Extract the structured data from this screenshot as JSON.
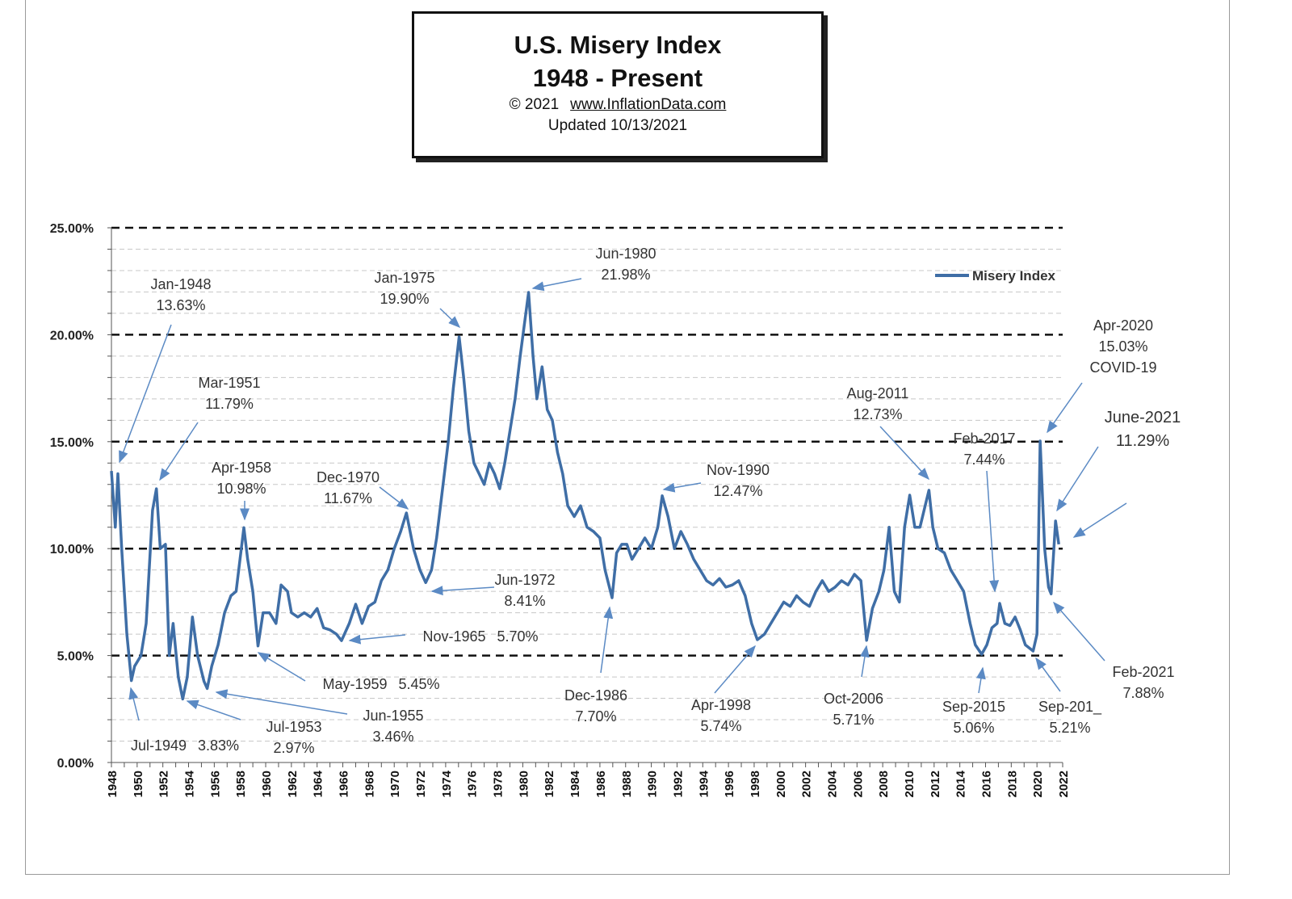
{
  "chart_data": {
    "type": "line",
    "title": "U.S. Misery Index",
    "subtitle": "1948 - Present",
    "copyright": "© 2021",
    "source_link": "www.InflationData.com",
    "updated": "Updated  10/13/2021",
    "xlabel": "",
    "ylabel": "",
    "xlim": [
      1948,
      2022
    ],
    "ylim": [
      0,
      25
    ],
    "y_ticks": [
      "0.00%",
      "5.00%",
      "10.00%",
      "15.00%",
      "20.00%",
      "25.00%"
    ],
    "x_ticks": [
      "1948",
      "1950",
      "1952",
      "1954",
      "1956",
      "1958",
      "1960",
      "1962",
      "1964",
      "1966",
      "1968",
      "1970",
      "1972",
      "1974",
      "1976",
      "1978",
      "1980",
      "1982",
      "1984",
      "1986",
      "1988",
      "1990",
      "1992",
      "1994",
      "1996",
      "1998",
      "2000",
      "2002",
      "2004",
      "2006",
      "2008",
      "2010",
      "2012",
      "2014",
      "2016",
      "2018",
      "2020",
      "2022"
    ],
    "grid": "major dashed every 5%, minor dotted every 1%",
    "legend_position": "top-right",
    "series": [
      {
        "name": "Misery Index",
        "color": "#3f6ea6",
        "points": [
          [
            1948.0,
            13.63
          ],
          [
            1948.3,
            11
          ],
          [
            1948.5,
            13.5
          ],
          [
            1948.8,
            10
          ],
          [
            1949.2,
            6
          ],
          [
            1949.55,
            3.83
          ],
          [
            1949.8,
            4.5
          ],
          [
            1950.3,
            5
          ],
          [
            1950.7,
            6.5
          ],
          [
            1951.2,
            11.79
          ],
          [
            1951.5,
            12.8
          ],
          [
            1951.8,
            10
          ],
          [
            1952.2,
            10.2
          ],
          [
            1952.5,
            5
          ],
          [
            1952.8,
            6.5
          ],
          [
            1953.2,
            4
          ],
          [
            1953.55,
            2.97
          ],
          [
            1953.9,
            4
          ],
          [
            1954.3,
            6.8
          ],
          [
            1954.7,
            5
          ],
          [
            1955.2,
            3.8
          ],
          [
            1955.45,
            3.46
          ],
          [
            1955.8,
            4.5
          ],
          [
            1956.3,
            5.5
          ],
          [
            1956.8,
            7
          ],
          [
            1957.3,
            7.8
          ],
          [
            1957.7,
            8
          ],
          [
            1958.3,
            10.98
          ],
          [
            1958.6,
            9.5
          ],
          [
            1959.0,
            8
          ],
          [
            1959.4,
            5.45
          ],
          [
            1959.8,
            7
          ],
          [
            1960.3,
            7
          ],
          [
            1960.8,
            6.5
          ],
          [
            1961.2,
            8.3
          ],
          [
            1961.7,
            8
          ],
          [
            1962.0,
            7
          ],
          [
            1962.5,
            6.8
          ],
          [
            1963.0,
            7
          ],
          [
            1963.5,
            6.8
          ],
          [
            1964.0,
            7.2
          ],
          [
            1964.5,
            6.3
          ],
          [
            1965.0,
            6.2
          ],
          [
            1965.5,
            6.0
          ],
          [
            1965.9,
            5.7
          ],
          [
            1966.5,
            6.5
          ],
          [
            1967.0,
            7.4
          ],
          [
            1967.5,
            6.5
          ],
          [
            1968.0,
            7.3
          ],
          [
            1968.5,
            7.5
          ],
          [
            1969.0,
            8.5
          ],
          [
            1969.5,
            9
          ],
          [
            1970.0,
            10
          ],
          [
            1970.5,
            10.8
          ],
          [
            1970.95,
            11.67
          ],
          [
            1971.5,
            10
          ],
          [
            1972.0,
            9
          ],
          [
            1972.45,
            8.41
          ],
          [
            1972.9,
            9
          ],
          [
            1973.3,
            10.5
          ],
          [
            1973.7,
            12.5
          ],
          [
            1974.2,
            15
          ],
          [
            1974.6,
            17.5
          ],
          [
            1975.05,
            19.9
          ],
          [
            1975.4,
            18
          ],
          [
            1975.8,
            15.5
          ],
          [
            1976.2,
            14
          ],
          [
            1976.6,
            13.5
          ],
          [
            1977.0,
            13
          ],
          [
            1977.4,
            14
          ],
          [
            1977.8,
            13.5
          ],
          [
            1978.2,
            12.8
          ],
          [
            1978.6,
            14
          ],
          [
            1979.0,
            15.5
          ],
          [
            1979.4,
            17
          ],
          [
            1979.8,
            19
          ],
          [
            1980.45,
            21.98
          ],
          [
            1980.8,
            19
          ],
          [
            1981.1,
            17
          ],
          [
            1981.5,
            18.5
          ],
          [
            1981.9,
            16.5
          ],
          [
            1982.3,
            16
          ],
          [
            1982.7,
            14.5
          ],
          [
            1983.1,
            13.5
          ],
          [
            1983.5,
            12
          ],
          [
            1984.0,
            11.5
          ],
          [
            1984.5,
            12
          ],
          [
            1985.0,
            11
          ],
          [
            1985.5,
            10.8
          ],
          [
            1986.0,
            10.5
          ],
          [
            1986.4,
            9
          ],
          [
            1986.95,
            7.7
          ],
          [
            1987.3,
            9.8
          ],
          [
            1987.7,
            10.2
          ],
          [
            1988.1,
            10.2
          ],
          [
            1988.5,
            9.5
          ],
          [
            1989.0,
            10
          ],
          [
            1989.5,
            10.5
          ],
          [
            1990.0,
            10
          ],
          [
            1990.5,
            11
          ],
          [
            1990.85,
            12.47
          ],
          [
            1991.3,
            11.5
          ],
          [
            1991.8,
            10
          ],
          [
            1992.3,
            10.8
          ],
          [
            1992.8,
            10.2
          ],
          [
            1993.3,
            9.5
          ],
          [
            1993.8,
            9
          ],
          [
            1994.3,
            8.5
          ],
          [
            1994.8,
            8.3
          ],
          [
            1995.3,
            8.6
          ],
          [
            1995.8,
            8.2
          ],
          [
            1996.3,
            8.3
          ],
          [
            1996.8,
            8.5
          ],
          [
            1997.3,
            7.8
          ],
          [
            1997.8,
            6.5
          ],
          [
            1998.25,
            5.74
          ],
          [
            1998.8,
            6
          ],
          [
            1999.3,
            6.5
          ],
          [
            1999.8,
            7
          ],
          [
            2000.3,
            7.5
          ],
          [
            2000.8,
            7.3
          ],
          [
            2001.3,
            7.8
          ],
          [
            2001.8,
            7.5
          ],
          [
            2002.3,
            7.3
          ],
          [
            2002.8,
            8
          ],
          [
            2003.3,
            8.5
          ],
          [
            2003.8,
            8
          ],
          [
            2004.3,
            8.2
          ],
          [
            2004.8,
            8.5
          ],
          [
            2005.3,
            8.3
          ],
          [
            2005.8,
            8.8
          ],
          [
            2006.3,
            8.5
          ],
          [
            2006.75,
            5.71
          ],
          [
            2007.2,
            7.2
          ],
          [
            2007.7,
            8
          ],
          [
            2008.1,
            9
          ],
          [
            2008.5,
            11
          ],
          [
            2008.9,
            8
          ],
          [
            2009.3,
            7.5
          ],
          [
            2009.7,
            11
          ],
          [
            2010.1,
            12.5
          ],
          [
            2010.5,
            11
          ],
          [
            2010.9,
            11
          ],
          [
            2011.3,
            12
          ],
          [
            2011.6,
            12.73
          ],
          [
            2011.9,
            11
          ],
          [
            2012.3,
            10
          ],
          [
            2012.8,
            9.8
          ],
          [
            2013.3,
            9
          ],
          [
            2013.8,
            8.5
          ],
          [
            2014.3,
            8
          ],
          [
            2014.8,
            6.5
          ],
          [
            2015.2,
            5.5
          ],
          [
            2015.7,
            5.06
          ],
          [
            2016.1,
            5.5
          ],
          [
            2016.5,
            6.3
          ],
          [
            2016.9,
            6.5
          ],
          [
            2017.1,
            7.44
          ],
          [
            2017.5,
            6.5
          ],
          [
            2017.9,
            6.4
          ],
          [
            2018.3,
            6.8
          ],
          [
            2018.7,
            6.2
          ],
          [
            2019.1,
            5.5
          ],
          [
            2019.7,
            5.21
          ],
          [
            2020.0,
            6
          ],
          [
            2020.25,
            15.03
          ],
          [
            2020.6,
            10
          ],
          [
            2020.9,
            8.2
          ],
          [
            2021.1,
            7.88
          ],
          [
            2021.45,
            11.29
          ],
          [
            2021.7,
            10.2
          ]
        ]
      }
    ],
    "annotations": [
      {
        "date": "Jan-1948",
        "value": "13.63%"
      },
      {
        "date": "Mar-1951",
        "value": "11.79%"
      },
      {
        "date": "Apr-1958",
        "value": "10.98%"
      },
      {
        "date": "Dec-1970",
        "value": "11.67%"
      },
      {
        "date": "Jan-1975",
        "value": "19.90%"
      },
      {
        "date": "Jun-1980",
        "value": "21.98%"
      },
      {
        "date": "Nov-1990",
        "value": "12.47%"
      },
      {
        "date": "Aug-2011",
        "value": "12.73%"
      },
      {
        "date": "Feb-2017",
        "value": "7.44%"
      },
      {
        "date": "Apr-2020",
        "value": "15.03%",
        "note": "COVID-19"
      },
      {
        "date": "June-2021",
        "value": "11.29%"
      },
      {
        "date": "Feb-2021",
        "value": "7.88%"
      },
      {
        "date": "Sep-201_",
        "value": "5.21%"
      },
      {
        "date": "Sep-2015",
        "value": "5.06%"
      },
      {
        "date": "Oct-2006",
        "value": "5.71%"
      },
      {
        "date": "Apr-1998",
        "value": "5.74%"
      },
      {
        "date": "Dec-1986",
        "value": "7.70%"
      },
      {
        "date": "Jun-1972",
        "value": "8.41%"
      },
      {
        "date": "Nov-1965",
        "value": "5.70%"
      },
      {
        "date": "May-1959",
        "value": "5.45%"
      },
      {
        "date": "Jun-1955",
        "value": "3.46%"
      },
      {
        "date": "Jul-1953",
        "value": "2.97%"
      },
      {
        "date": "Jul-1949",
        "value": "3.83%"
      }
    ]
  }
}
